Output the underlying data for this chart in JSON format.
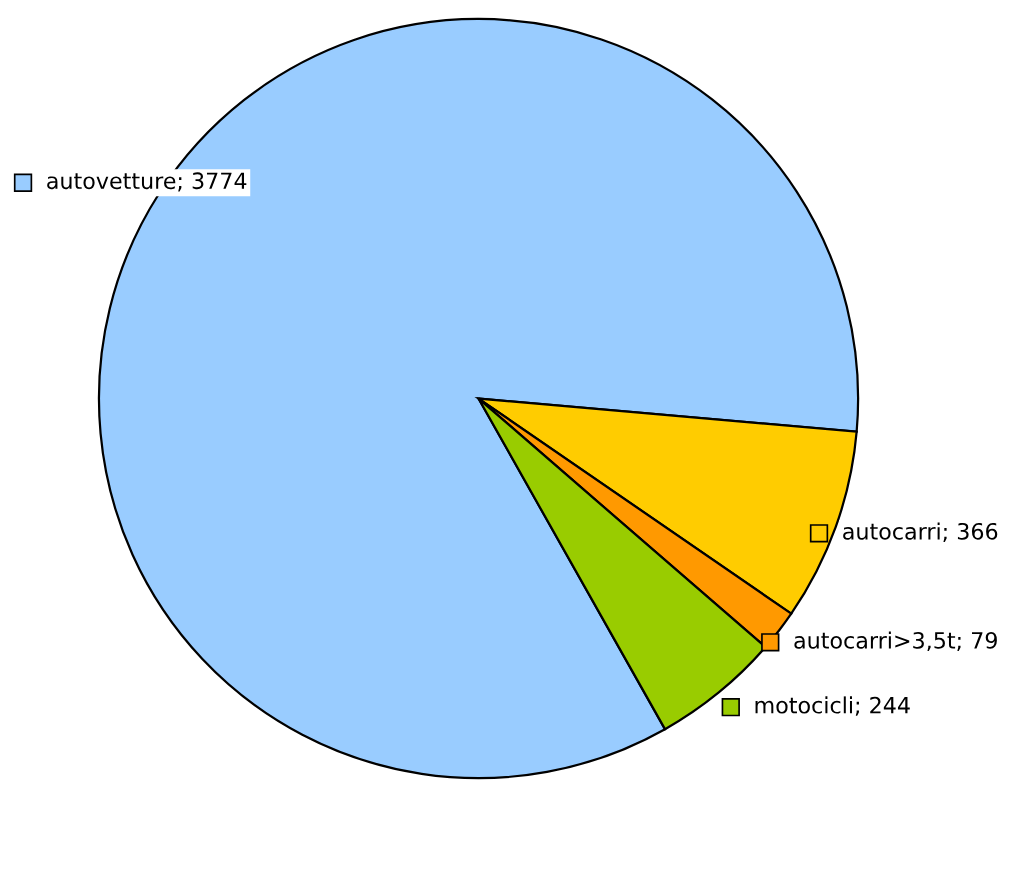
{
  "chart_data": {
    "type": "pie",
    "categories": [
      "autovetture; 3774",
      "autocarri; 366",
      "autocarri>3,5t; 79",
      "motocicli; 244"
    ],
    "values": [
      3774,
      366,
      79,
      244
    ],
    "colors": [
      "#99ccff",
      "#ffcc00",
      "#ff9900",
      "#99cc00"
    ],
    "legend": "right"
  }
}
